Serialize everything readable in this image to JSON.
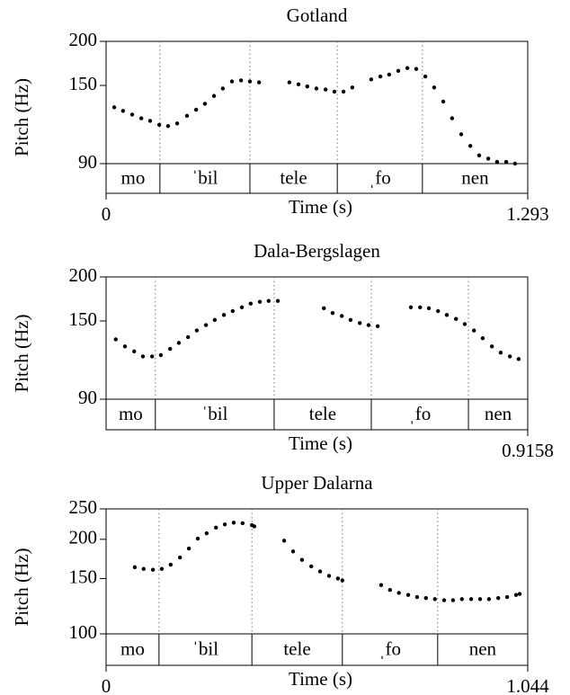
{
  "chart_data": [
    {
      "type": "scatter",
      "title": "Gotland",
      "xlabel": "Time (s)",
      "ylabel": "Pitch (Hz)",
      "color": "#000000",
      "log_y": true,
      "xlim": [
        0,
        1.293
      ],
      "xticks": [
        0,
        1.293
      ],
      "ylim": [
        90,
        200
      ],
      "yticks": [
        90,
        150,
        200
      ],
      "x": [
        0.025,
        0.052,
        0.08,
        0.108,
        0.135,
        0.163,
        0.19,
        0.218,
        0.248,
        0.276,
        0.303,
        0.331,
        0.358,
        0.386,
        0.414,
        0.441,
        0.469,
        0.562,
        0.59,
        0.617,
        0.645,
        0.673,
        0.7,
        0.728,
        0.755,
        0.813,
        0.841,
        0.868,
        0.896,
        0.924,
        0.951,
        0.979,
        1.006,
        1.034,
        1.061,
        1.089,
        1.117,
        1.144,
        1.172,
        1.199,
        1.227,
        1.254
      ],
      "values": [
        130,
        127,
        124,
        121,
        119,
        116,
        115,
        117,
        123,
        128,
        133,
        140,
        147,
        154,
        155,
        154,
        153,
        153,
        151,
        149,
        147,
        146,
        144,
        144,
        148,
        156,
        159,
        161,
        165,
        168,
        167,
        159,
        148,
        135,
        121,
        109,
        101,
        95,
        93,
        91,
        91,
        90
      ],
      "tier": {
        "labels": [
          "mo",
          "ˈbil",
          "tele",
          "ˌfo",
          "nen"
        ],
        "bounds": [
          0.165,
          0.441,
          0.709,
          0.97
        ]
      }
    },
    {
      "type": "scatter",
      "title": "Dala-Bergslagen",
      "xlabel": "Time (s)",
      "ylabel": "Pitch (Hz)",
      "color": "#000000",
      "log_y": true,
      "xlim": [
        0,
        0.9158
      ],
      "xticks": [
        0.9158
      ],
      "ylim": [
        90,
        200
      ],
      "yticks": [
        90,
        150,
        200
      ],
      "x": [
        0.021,
        0.041,
        0.061,
        0.08,
        0.1,
        0.119,
        0.139,
        0.158,
        0.178,
        0.197,
        0.217,
        0.236,
        0.256,
        0.275,
        0.295,
        0.314,
        0.334,
        0.353,
        0.373,
        0.473,
        0.492,
        0.512,
        0.531,
        0.551,
        0.57,
        0.59,
        0.662,
        0.682,
        0.701,
        0.721,
        0.74,
        0.76,
        0.779,
        0.799,
        0.818,
        0.838,
        0.857,
        0.877,
        0.896
      ],
      "values": [
        133,
        127,
        123,
        119,
        119,
        120,
        125,
        130,
        135,
        141,
        146,
        151,
        156,
        160,
        164,
        168,
        170,
        171,
        171,
        163,
        158,
        155,
        151,
        148,
        146,
        145,
        164,
        164,
        163,
        160,
        156,
        152,
        147,
        141,
        134,
        127,
        122,
        119,
        117
      ],
      "tier": {
        "labels": [
          "mo",
          "ˈbil",
          "tele",
          "ˌfo",
          "nen"
        ],
        "bounds": [
          0.107,
          0.365,
          0.576,
          0.787
        ]
      }
    },
    {
      "type": "scatter",
      "title": "Upper Dalarna",
      "xlabel": "Time (s)",
      "ylabel": "Pitch (Hz)",
      "color": "#000000",
      "log_y": true,
      "xlim": [
        0,
        1.044
      ],
      "xticks": [
        0,
        1.044
      ],
      "ylim": [
        100,
        250
      ],
      "yticks": [
        100,
        150,
        200,
        250
      ],
      "x": [
        0.071,
        0.093,
        0.116,
        0.138,
        0.16,
        0.183,
        0.205,
        0.227,
        0.249,
        0.272,
        0.294,
        0.316,
        0.338,
        0.361,
        0.367,
        0.441,
        0.463,
        0.485,
        0.508,
        0.53,
        0.552,
        0.574,
        0.585,
        0.681,
        0.703,
        0.725,
        0.748,
        0.77,
        0.792,
        0.814,
        0.837,
        0.859,
        0.881,
        0.904,
        0.926,
        0.948,
        0.971,
        0.993,
        1.015,
        1.024
      ],
      "values": [
        163,
        161,
        160,
        161,
        166,
        175,
        187,
        201,
        209,
        218,
        223,
        226,
        225,
        222,
        220,
        198,
        183,
        172,
        164,
        158,
        153,
        150,
        148,
        143,
        138,
        135,
        133,
        131,
        130,
        129,
        128,
        128,
        129,
        129,
        129,
        129,
        130,
        131,
        133,
        134
      ],
      "tier": {
        "labels": [
          "mo",
          "ˈbil",
          "tele",
          "ˌfo",
          "nen"
        ],
        "bounds": [
          0.131,
          0.361,
          0.585,
          0.821
        ]
      }
    }
  ]
}
